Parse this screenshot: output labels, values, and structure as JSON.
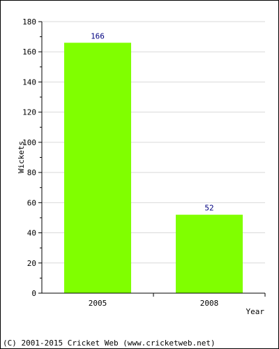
{
  "chart_data": {
    "type": "bar",
    "categories": [
      "2005",
      "2008"
    ],
    "values": [
      166,
      52
    ],
    "data_labels": [
      "166",
      "52"
    ],
    "title": "",
    "xlabel": "Year",
    "ylabel": "Wickets",
    "ylim": [
      0,
      180
    ],
    "yticks": [
      0,
      20,
      40,
      60,
      80,
      100,
      120,
      140,
      160,
      180
    ],
    "grid": true,
    "legend": "none",
    "colors": {
      "bar": "#80ff00",
      "value_label": "#000080",
      "grid": "#d9d9d9"
    }
  },
  "footer": "(C) 2001-2015 Cricket Web (www.cricketweb.net)"
}
